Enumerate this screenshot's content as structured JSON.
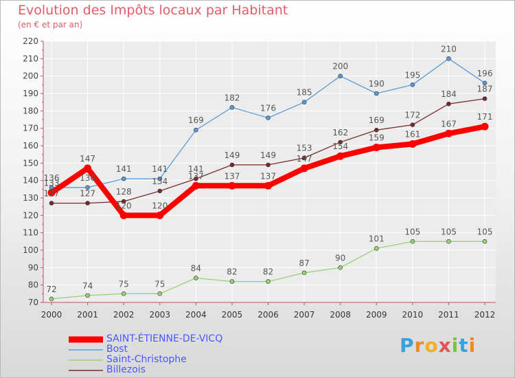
{
  "title": "Evolution des Impôts locaux par Habitant",
  "subtitle": "(en € et par an)",
  "logo": "Proxiti",
  "chart_data": {
    "type": "line",
    "title": "Evolution des Impôts locaux par Habitant",
    "subtitle": "(en € et par an)",
    "categories": [
      "2000",
      "2001",
      "2002",
      "2003",
      "2004",
      "2005",
      "2006",
      "2007",
      "2008",
      "2009",
      "2010",
      "2011",
      "2012"
    ],
    "ylim": [
      70,
      220
    ],
    "yticks": [
      70,
      80,
      90,
      100,
      110,
      120,
      130,
      140,
      150,
      160,
      170,
      180,
      190,
      200,
      210,
      220
    ],
    "grid": true,
    "legend_position": "bottom-left",
    "series": [
      {
        "name": "SAINT-ÉTIENNE-DE-VICQ",
        "color": "#ff0000",
        "values": [
          133,
          147,
          120,
          120,
          137,
          137,
          137,
          147,
          154,
          159,
          161,
          167,
          171
        ]
      },
      {
        "name": "Bost",
        "color": "#5b9bd5",
        "values": [
          136,
          136,
          141,
          141,
          169,
          182,
          176,
          185,
          200,
          190,
          195,
          210,
          196
        ]
      },
      {
        "name": "Saint-Christophe",
        "color": "#99d177",
        "values": [
          72,
          74,
          75,
          75,
          84,
          82,
          82,
          87,
          90,
          101,
          105,
          105,
          105
        ]
      },
      {
        "name": "Billezois",
        "color": "#7a2a2a",
        "values": [
          127,
          127,
          128,
          134,
          141,
          149,
          149,
          153,
          162,
          169,
          172,
          184,
          187
        ]
      }
    ]
  }
}
